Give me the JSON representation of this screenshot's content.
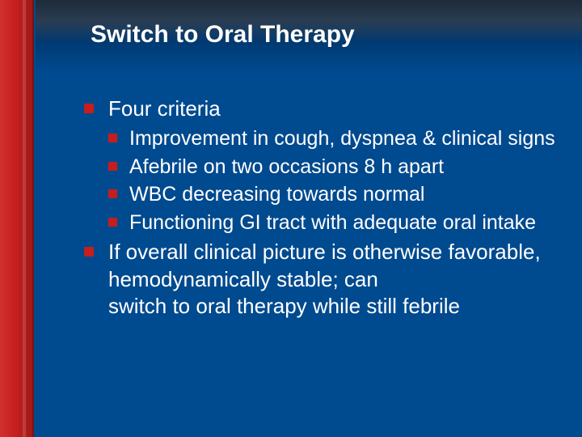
{
  "slide": {
    "title": "Switch to Oral Therapy",
    "bullets_lvl1": [
      {
        "text": "Four criteria",
        "children": [
          "Improvement in cough, dyspnea & clinical signs",
          "Afebrile on two occasions 8 h apart",
          "WBC decreasing towards normal",
          "Functioning GI tract with adequate oral intake"
        ]
      },
      {
        "text": "If overall clinical picture is otherwise favorable, hemodynamically stable; can",
        "cutoff": "switch to oral therapy while still febrile"
      }
    ]
  },
  "style": {
    "background_color": "#004a8f",
    "sidebar_color": "#c41e1e",
    "bullet_color": "#c41e1e",
    "text_color": "#ffffff",
    "title_fontsize": 30,
    "body_fontsize": 26,
    "sub_fontsize": 25,
    "font_family": "Arial"
  }
}
